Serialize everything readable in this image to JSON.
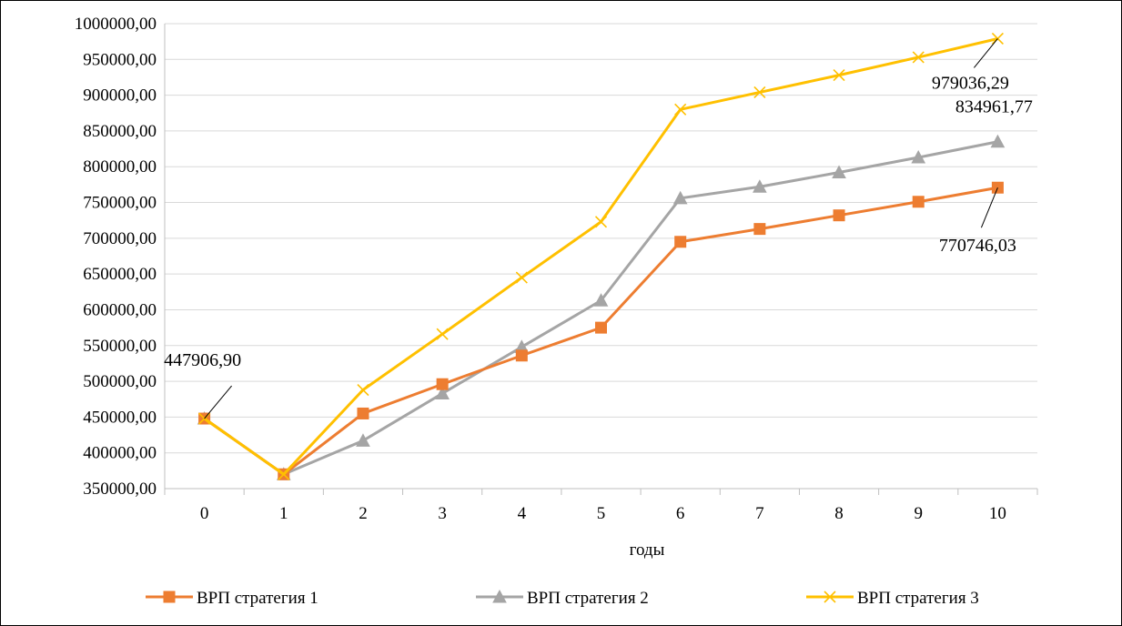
{
  "chart_data": {
    "type": "line",
    "title": "",
    "xlabel": "годы",
    "ylabel": "",
    "categories": [
      "0",
      "1",
      "2",
      "3",
      "4",
      "5",
      "6",
      "7",
      "8",
      "9",
      "10"
    ],
    "ylim": [
      350000,
      1000000
    ],
    "ytick_step": 50000,
    "ytick_labels": [
      "350000,00",
      "400000,00",
      "450000,00",
      "500000,00",
      "550000,00",
      "600000,00",
      "650000,00",
      "700000,00",
      "750000,00",
      "800000,00",
      "850000,00",
      "900000,00",
      "950000,00",
      "1000000,00"
    ],
    "grid": true,
    "legend_position": "bottom",
    "series": [
      {
        "name": "ВРП стратегия 1",
        "color": "#ED7D31",
        "marker": "square",
        "values": [
          447906.9,
          370000,
          455000,
          496000,
          536000,
          575000,
          695000,
          713000,
          732000,
          751000,
          770746.03
        ]
      },
      {
        "name": "ВРП стратегия 2",
        "color": "#A5A5A5",
        "marker": "triangle",
        "values": [
          447906.9,
          370000,
          417000,
          483000,
          548000,
          613000,
          756000,
          772000,
          792000,
          813000,
          834961.77
        ]
      },
      {
        "name": "ВРП стратегия 3",
        "color": "#FFC000",
        "marker": "x",
        "values": [
          447906.9,
          370000,
          488000,
          566000,
          645000,
          723000,
          880000,
          904000,
          928000,
          953000,
          979036.29
        ]
      }
    ],
    "annotations": [
      {
        "text": "447906,90",
        "series": 0,
        "index": 0
      },
      {
        "text": "979036,29",
        "series": 2,
        "index": 10
      },
      {
        "text": "834961,77",
        "series": 1,
        "index": 10
      },
      {
        "text": "770746,03",
        "series": 0,
        "index": 10
      }
    ]
  }
}
